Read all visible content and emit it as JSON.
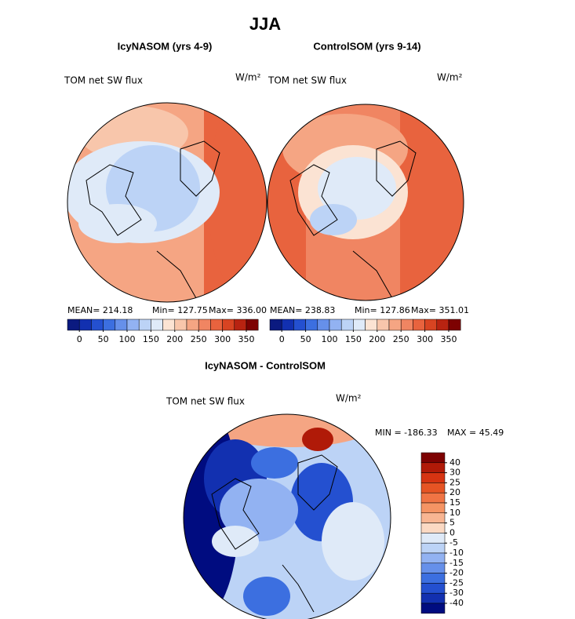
{
  "title": "JJA",
  "panels": [
    {
      "title": "IcyNASOM (yrs 4-9)",
      "variable": "TOM net SW flux",
      "units": "W/m²",
      "stats": [
        "MEAN= 214.18",
        "Min= 127.75",
        "Max= 336.00"
      ]
    },
    {
      "title": "ControlSOM (yrs 9-14)",
      "variable": "TOM net SW flux",
      "units": "W/m²",
      "stats": [
        "MEAN= 238.83",
        "Min= 127.86",
        "Max= 351.01"
      ]
    },
    {
      "title": "IcyNASOM - ControlSOM",
      "variable": "TOM net SW flux",
      "units": "W/m²",
      "stats": [
        "MIN = -186.33",
        "MAX = 45.49"
      ]
    }
  ],
  "colorbar_top": {
    "levels": [
      0,
      50,
      100,
      150,
      200,
      250,
      300,
      350
    ],
    "colors": [
      "#0b1a80",
      "#1230b0",
      "#2450d0",
      "#3c6fe0",
      "#6690ea",
      "#92b2f2",
      "#bcd3f6",
      "#dfeaf8",
      "#fbe3d3",
      "#f8c6ab",
      "#f5a583",
      "#f08562",
      "#e8633e",
      "#d84422",
      "#b82311",
      "#7d0202"
    ]
  },
  "colorbar_diff": {
    "levels": [
      40,
      30,
      25,
      20,
      15,
      10,
      5,
      0,
      -5,
      -10,
      -15,
      -20,
      -25,
      -30,
      -40
    ],
    "colors": [
      "#7d0202",
      "#b01a08",
      "#d63412",
      "#e65424",
      "#f07444",
      "#f59464",
      "#f8b592",
      "#fbd9c3",
      "#dfeaf8",
      "#bcd3f6",
      "#92b2f2",
      "#6690ea",
      "#3c6fe0",
      "#2450d0",
      "#1230b0",
      "#000c80"
    ]
  }
}
